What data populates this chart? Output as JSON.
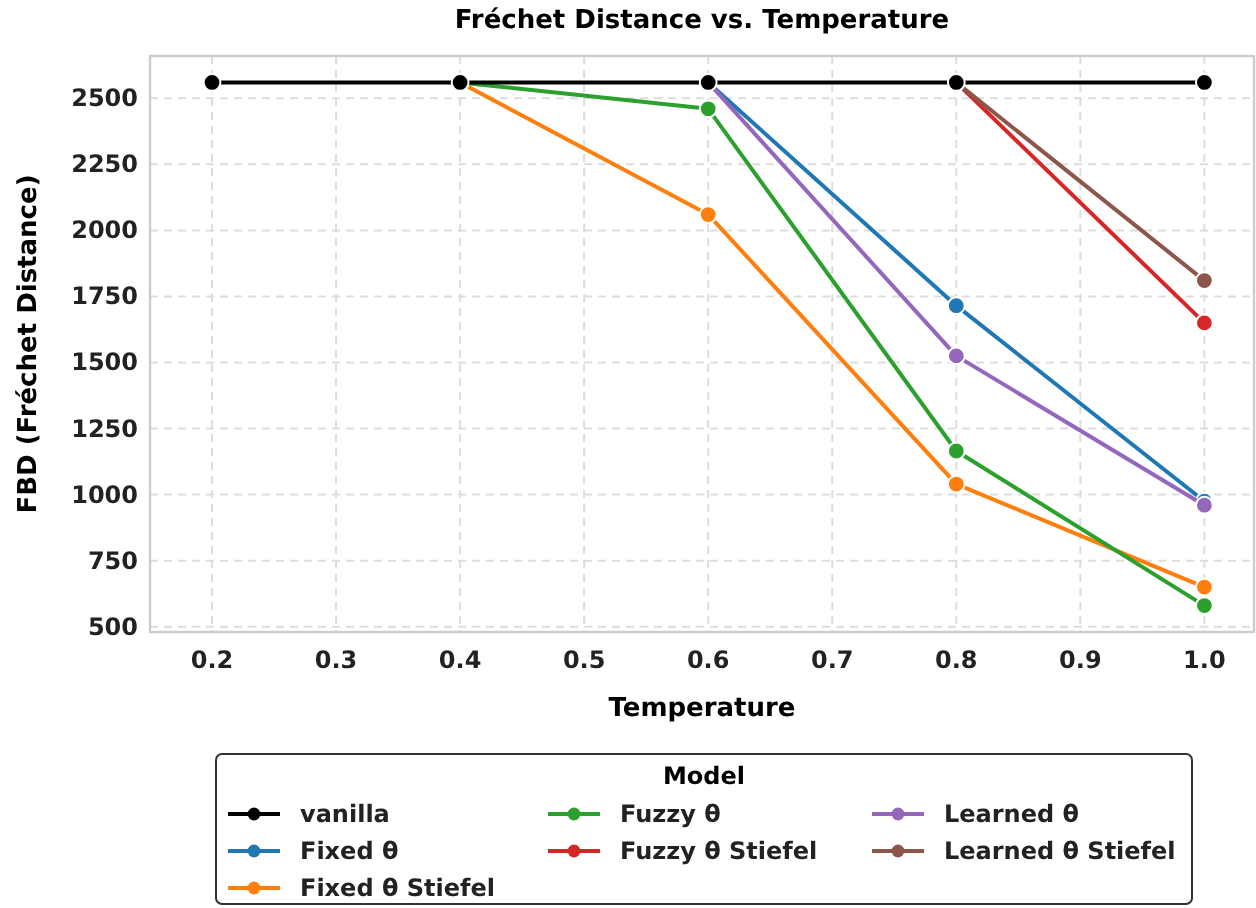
{
  "chart_data": {
    "type": "line",
    "title": "Fréchet Distance vs. Temperature",
    "xlabel": "Temperature",
    "ylabel": "FBD (Fréchet Distance)",
    "legend_title": "Model",
    "x": [
      0.2,
      0.4,
      0.6,
      0.8,
      1.0
    ],
    "xlim": [
      0.15,
      1.04
    ],
    "xticks": [
      {
        "value": 0.2,
        "label": "0.2"
      },
      {
        "value": 0.3,
        "label": "0.3"
      },
      {
        "value": 0.4,
        "label": "0.4"
      },
      {
        "value": 0.5,
        "label": "0.5"
      },
      {
        "value": 0.6,
        "label": "0.6"
      },
      {
        "value": 0.7,
        "label": "0.7"
      },
      {
        "value": 0.8,
        "label": "0.8"
      },
      {
        "value": 0.9,
        "label": "0.9"
      },
      {
        "value": 1.0,
        "label": "1.0"
      }
    ],
    "ylim": [
      480,
      2660
    ],
    "yticks": [
      500,
      750,
      1000,
      1250,
      1500,
      1750,
      2000,
      2250,
      2500
    ],
    "grid": true,
    "legend": "bottom",
    "marker": "circle",
    "line_style": "solid",
    "series": [
      {
        "name": "vanilla",
        "color": "#000000",
        "values": [
          2560,
          2560,
          2560,
          2560,
          2560
        ]
      },
      {
        "name": "Fixed θ",
        "color": "#1f77b4",
        "values": [
          null,
          null,
          2560,
          1715,
          975
        ]
      },
      {
        "name": "Fixed θ Stiefel",
        "color": "#ff7f0e",
        "values": [
          null,
          2560,
          2060,
          1040,
          650
        ]
      },
      {
        "name": "Fuzzy θ",
        "color": "#2ca02c",
        "values": [
          null,
          2560,
          2460,
          1165,
          580
        ]
      },
      {
        "name": "Fuzzy θ Stiefel",
        "color": "#d62728",
        "values": [
          null,
          null,
          null,
          2560,
          1650
        ]
      },
      {
        "name": "Learned θ",
        "color": "#9467bd",
        "values": [
          null,
          null,
          2560,
          1525,
          960
        ]
      },
      {
        "name": "Learned θ Stiefel",
        "color": "#8c564b",
        "values": [
          null,
          null,
          null,
          2560,
          1810
        ]
      }
    ]
  }
}
